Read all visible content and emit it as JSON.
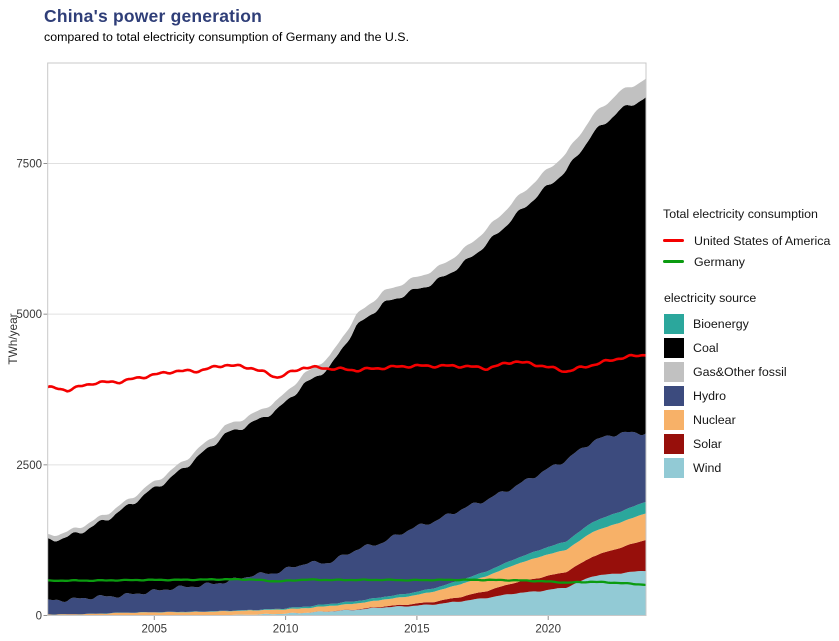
{
  "header": {
    "title": "China's power generation",
    "subtitle": "compared to total electricity consumption of Germany and the U.S."
  },
  "legend_consumption": {
    "title": "Total electricity consumption",
    "items": [
      {
        "label": "United States of America",
        "color": "#f40000"
      },
      {
        "label": "Germany",
        "color": "#0b9b10"
      }
    ]
  },
  "legend_source": {
    "title": "electricity source",
    "items": [
      {
        "label": "Bioenergy",
        "color": "#2ba79c"
      },
      {
        "label": "Coal",
        "color": "#000000"
      },
      {
        "label": "Gas&Other fossil",
        "color": "#c1c1c1"
      },
      {
        "label": "Hydro",
        "color": "#3c4b7e"
      },
      {
        "label": "Nuclear",
        "color": "#f7b168"
      },
      {
        "label": "Solar",
        "color": "#970f0b"
      },
      {
        "label": "Wind",
        "color": "#92cad5"
      }
    ]
  },
  "chart_data": {
    "type": "area",
    "title": "China's power generation",
    "subtitle": "compared to total electricity consumption of Germany and the U.S.",
    "ylabel": "TWh/year",
    "unit": "TWh/year",
    "x_ticks": [
      2005,
      2010,
      2015,
      2020
    ],
    "y_ticks": [
      0,
      2500,
      5000,
      7500
    ],
    "ylim": [
      0,
      9170
    ],
    "xlim": [
      2001,
      2023.75
    ],
    "grid": "horizontal",
    "legend_position": "right",
    "years": [
      2000,
      2001,
      2002,
      2003,
      2004,
      2005,
      2006,
      2007,
      2008,
      2009,
      2010,
      2011,
      2012,
      2013,
      2014,
      2015,
      2016,
      2017,
      2018,
      2019,
      2020,
      2021,
      2022,
      2023,
      2024
    ],
    "stack_series_bottom_to_top": [
      {
        "name": "Wind",
        "color": "#92cad5",
        "values": [
          1,
          1,
          1,
          1,
          1,
          2,
          4,
          9,
          15,
          27,
          45,
          70,
          96,
          135,
          156,
          186,
          237,
          295,
          366,
          406,
          466,
          656,
          700,
          745,
          810
        ]
      },
      {
        "name": "Solar",
        "color": "#970f0b",
        "values": [
          0,
          0,
          0,
          0,
          0,
          0,
          0,
          0,
          0,
          0,
          1,
          3,
          6,
          15,
          29,
          45,
          75,
          118,
          177,
          224,
          261,
          327,
          420,
          510,
          600
        ]
      },
      {
        "name": "Nuclear",
        "color": "#f7b168",
        "values": [
          17,
          17,
          25,
          43,
          50,
          53,
          55,
          62,
          68,
          70,
          74,
          87,
          97,
          112,
          133,
          171,
          213,
          248,
          295,
          349,
          366,
          408,
          418,
          440,
          460
        ]
      },
      {
        "name": "Bioenergy",
        "color": "#2ba79c",
        "values": [
          2,
          2,
          3,
          3,
          3,
          4,
          5,
          6,
          8,
          12,
          25,
          34,
          40,
          45,
          50,
          55,
          65,
          80,
          95,
          115,
          140,
          165,
          180,
          190,
          195
        ]
      },
      {
        "name": "Hydro",
        "color": "#3c4b7e",
        "values": [
          222,
          240,
          275,
          281,
          330,
          395,
          431,
          480,
          575,
          610,
          720,
          690,
          860,
          910,
          1060,
          1115,
          1175,
          1190,
          1200,
          1270,
          1355,
          1340,
          1310,
          1145,
          1200
        ]
      },
      {
        "name": "Coal",
        "color": "#000000",
        "values": [
          985,
          1040,
          1180,
          1400,
          1640,
          1850,
          2150,
          2450,
          2520,
          2700,
          2965,
          3240,
          3700,
          3950,
          3930,
          3960,
          4050,
          4250,
          4480,
          4650,
          4800,
          5100,
          5350,
          5560,
          5650
        ]
      },
      {
        "name": "Gas&Other fossil",
        "color": "#c1c1c1",
        "values": [
          80,
          85,
          90,
          95,
          105,
          115,
          125,
          135,
          140,
          150,
          170,
          180,
          185,
          195,
          200,
          210,
          225,
          245,
          265,
          275,
          285,
          300,
          305,
          305,
          310
        ]
      }
    ],
    "line_series": [
      {
        "name": "United States of America",
        "color": "#f40000",
        "values": [
          3800,
          3740,
          3860,
          3880,
          3970,
          4050,
          4060,
          4160,
          4110,
          3950,
          4120,
          4100,
          4070,
          4110,
          4140,
          4140,
          4140,
          4100,
          4220,
          4150,
          4050,
          4160,
          4270,
          4330,
          4290
        ]
      },
      {
        "name": "Germany",
        "color": "#0b9b10",
        "values": [
          575,
          580,
          580,
          585,
          590,
          590,
          595,
          600,
          598,
          565,
          595,
          590,
          590,
          592,
          585,
          590,
          592,
          590,
          585,
          570,
          545,
          560,
          540,
          510,
          505
        ]
      }
    ]
  }
}
